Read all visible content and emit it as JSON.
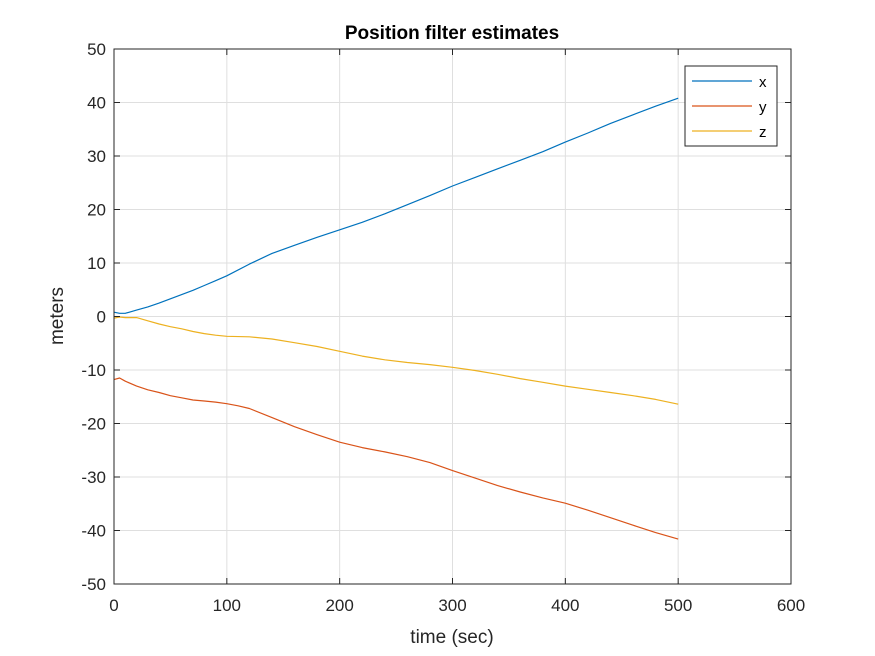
{
  "chart_data": {
    "type": "line",
    "title": "Position filter estimates",
    "xlabel": "time (sec)",
    "ylabel": "meters",
    "xlim": [
      0,
      600
    ],
    "ylim": [
      -50,
      50
    ],
    "xticks": [
      "0",
      "100",
      "200",
      "300",
      "400",
      "500",
      "600"
    ],
    "yticks": [
      "50",
      "40",
      "30",
      "20",
      "10",
      "0",
      "-10",
      "-20",
      "-30",
      "-40",
      "-50"
    ],
    "grid": true,
    "legend_position": "top-right",
    "series": [
      {
        "name": "x",
        "color": "#0072BD",
        "x": [
          0,
          5,
          10,
          20,
          30,
          40,
          50,
          60,
          70,
          80,
          90,
          100,
          120,
          140,
          160,
          180,
          200,
          220,
          240,
          260,
          280,
          300,
          320,
          340,
          360,
          380,
          400,
          420,
          440,
          460,
          480,
          500
        ],
        "y": [
          0.8,
          0.6,
          0.6,
          1.2,
          1.8,
          2.5,
          3.3,
          4.1,
          4.9,
          5.8,
          6.7,
          7.6,
          9.8,
          11.8,
          13.3,
          14.8,
          16.2,
          17.6,
          19.2,
          20.9,
          22.6,
          24.4,
          26.0,
          27.6,
          29.2,
          30.8,
          32.6,
          34.3,
          36.1,
          37.7,
          39.3,
          40.8
        ]
      },
      {
        "name": "y",
        "color": "#D95319",
        "x": [
          0,
          5,
          10,
          20,
          30,
          40,
          50,
          60,
          70,
          80,
          90,
          100,
          110,
          120,
          140,
          160,
          180,
          200,
          220,
          240,
          260,
          280,
          300,
          320,
          340,
          360,
          380,
          400,
          420,
          440,
          460,
          480,
          500
        ],
        "y": [
          -11.8,
          -11.5,
          -12.1,
          -13.0,
          -13.7,
          -14.2,
          -14.8,
          -15.2,
          -15.6,
          -15.8,
          -16.0,
          -16.3,
          -16.7,
          -17.2,
          -18.9,
          -20.6,
          -22.1,
          -23.5,
          -24.5,
          -25.3,
          -26.2,
          -27.3,
          -28.8,
          -30.2,
          -31.6,
          -32.8,
          -33.9,
          -34.9,
          -36.2,
          -37.6,
          -39.0,
          -40.4,
          -41.6
        ]
      },
      {
        "name": "z",
        "color": "#EDB120",
        "x": [
          0,
          5,
          10,
          20,
          30,
          40,
          50,
          60,
          70,
          80,
          90,
          100,
          120,
          140,
          160,
          180,
          200,
          220,
          240,
          260,
          280,
          300,
          320,
          340,
          360,
          380,
          400,
          420,
          440,
          460,
          480,
          500
        ],
        "y": [
          -0.3,
          -0.1,
          -0.2,
          -0.2,
          -0.8,
          -1.4,
          -1.9,
          -2.3,
          -2.8,
          -3.2,
          -3.5,
          -3.7,
          -3.8,
          -4.2,
          -4.9,
          -5.6,
          -6.5,
          -7.4,
          -8.1,
          -8.6,
          -9.0,
          -9.5,
          -10.1,
          -10.8,
          -11.6,
          -12.3,
          -13.0,
          -13.6,
          -14.2,
          -14.8,
          -15.5,
          -16.4
        ]
      }
    ]
  }
}
